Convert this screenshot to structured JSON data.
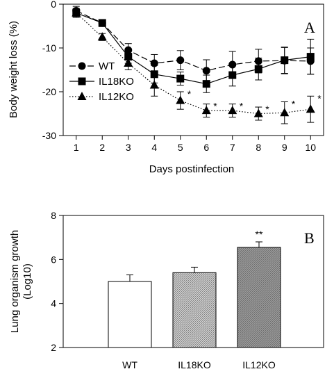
{
  "chart_data": [
    {
      "type": "line",
      "panel_label": "A",
      "xlabel": "Days postinfection",
      "ylabel": "Body weight loss (%)",
      "x": [
        1,
        2,
        3,
        4,
        5,
        6,
        7,
        8,
        9,
        10
      ],
      "xlim": [
        0.5,
        10.5
      ],
      "ylim": [
        -30,
        0
      ],
      "yticks": [
        0,
        -10,
        -20,
        -30
      ],
      "legend_position": "left",
      "grid": false,
      "series": [
        {
          "name": "WT",
          "marker": "circle",
          "line_style": "dashed",
          "values": [
            -1.5,
            -4.3,
            -10.5,
            -13.5,
            -12.8,
            -15.2,
            -13.8,
            -13.0,
            -12.9,
            -13.0
          ],
          "errors": [
            1.0,
            0.8,
            1.5,
            2.0,
            2.2,
            2.5,
            3.0,
            2.7,
            3.0,
            3.0
          ]
        },
        {
          "name": "IL18KO",
          "marker": "square",
          "line_style": "solid",
          "values": [
            -2.0,
            -4.3,
            -12.0,
            -16.0,
            -17.0,
            -18.2,
            -16.2,
            -14.8,
            -12.8,
            -12.0
          ],
          "errors": [
            1.0,
            0.8,
            1.5,
            2.0,
            1.5,
            2.0,
            2.5,
            2.5,
            3.0,
            4.0
          ]
        },
        {
          "name": "IL12KO",
          "marker": "triangle",
          "line_style": "dotted",
          "values": [
            -2.0,
            -7.5,
            -13.5,
            -18.5,
            -22.0,
            -24.3,
            -24.3,
            -25.0,
            -24.8,
            -24.0
          ],
          "errors": [
            1.0,
            0.8,
            1.5,
            2.5,
            2.0,
            1.5,
            1.5,
            1.5,
            2.5,
            3.0
          ]
        }
      ],
      "annotations": [
        {
          "text": "*",
          "x": 5
        },
        {
          "text": "*",
          "x": 6
        },
        {
          "text": "*",
          "x": 7
        },
        {
          "text": "*",
          "x": 8
        },
        {
          "text": "*",
          "x": 9
        },
        {
          "text": "*",
          "x": 10
        }
      ]
    },
    {
      "type": "bar",
      "panel_label": "B",
      "xlabel": "",
      "ylabel": "Lung organism growth (Log10)",
      "ylabel_lines": [
        "Lung organism growth",
        "(Log10)"
      ],
      "categories": [
        "WT",
        "IL18KO",
        "IL12KO"
      ],
      "values": [
        5.0,
        5.4,
        6.55
      ],
      "errors": [
        0.3,
        0.25,
        0.25
      ],
      "fills": [
        "#ffffff",
        "#d0d0d0",
        "#9a9a9a"
      ],
      "ylim": [
        2,
        8
      ],
      "yticks": [
        2,
        4,
        6,
        8
      ],
      "annotations": [
        {
          "text": "**",
          "category": "IL12KO"
        }
      ]
    }
  ]
}
